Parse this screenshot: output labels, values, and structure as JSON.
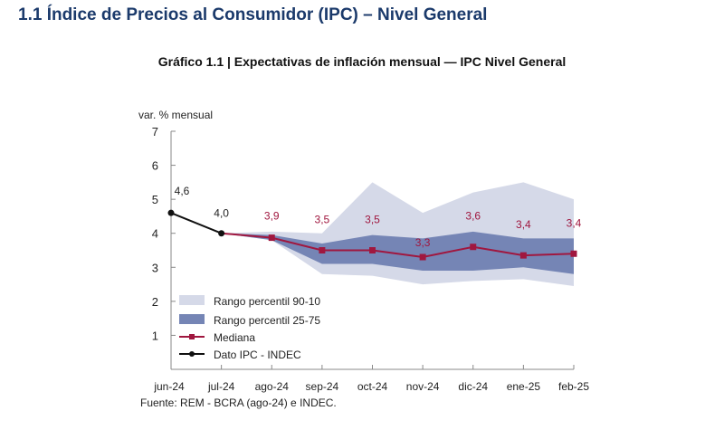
{
  "section_title": "1.1 Índice de Precios al Consumidor (IPC) – Nivel General",
  "chart_data": {
    "type": "line",
    "title": "Gráfico 1.1 | Expectativas de inflación mensual — IPC Nivel General",
    "ylabel": "var. % mensual",
    "xlabel": "",
    "ylim": [
      0,
      7
    ],
    "yticks": [
      1,
      2,
      3,
      4,
      5,
      6,
      7
    ],
    "categories": [
      "jun-24",
      "jul-24",
      "ago-24",
      "sep-24",
      "oct-24",
      "nov-24",
      "dic-24",
      "ene-25",
      "feb-25"
    ],
    "grid": false,
    "legend_position": "bottom-left",
    "series": [
      {
        "name": "Rango percentil 90-10",
        "kind": "band",
        "color": "#d5d9e8",
        "lower": [
          null,
          4.0,
          3.8,
          2.8,
          2.75,
          2.5,
          2.6,
          2.65,
          2.45
        ],
        "upper": [
          null,
          4.0,
          4.05,
          4.0,
          5.5,
          4.6,
          5.2,
          5.5,
          5.0
        ]
      },
      {
        "name": "Rango percentil 25-75",
        "kind": "band",
        "color": "#7585b5",
        "lower": [
          null,
          4.0,
          3.8,
          3.1,
          3.1,
          2.9,
          2.9,
          3.0,
          2.8
        ],
        "upper": [
          null,
          4.0,
          3.95,
          3.7,
          3.95,
          3.85,
          4.05,
          3.85,
          3.85
        ]
      },
      {
        "name": "Mediana",
        "kind": "line",
        "color": "#a0173f",
        "values": [
          null,
          4.0,
          3.87,
          3.5,
          3.5,
          3.3,
          3.6,
          3.35,
          3.4
        ],
        "labels": [
          null,
          null,
          "3,9",
          "3,5",
          "3,5",
          "3,3",
          "3,6",
          "3,4",
          "3,4"
        ]
      },
      {
        "name": "Dato IPC - INDEC",
        "kind": "line",
        "color": "#111111",
        "values": [
          4.6,
          4.0,
          null,
          null,
          null,
          null,
          null,
          null,
          null
        ],
        "labels": [
          "4,6",
          "4,0",
          null,
          null,
          null,
          null,
          null,
          null,
          null
        ]
      }
    ],
    "source": "Fuente: REM - BCRA (ago-24) e INDEC."
  }
}
